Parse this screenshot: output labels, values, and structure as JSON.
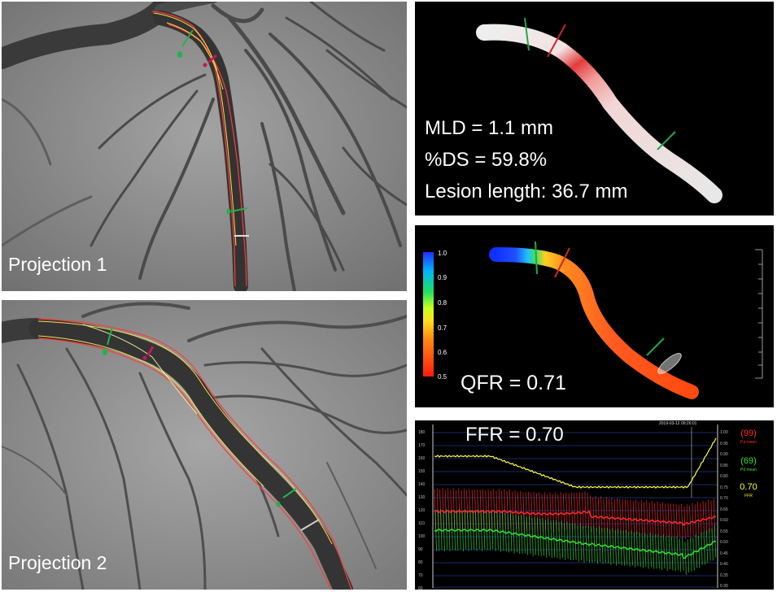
{
  "projection1": {
    "label": "Projection 1"
  },
  "projection2": {
    "label": "Projection 2"
  },
  "model3d": {
    "mld": "MLD = 1.1 mm",
    "ds": "%DS = 59.8%",
    "lesion_length": "Lesion length: 36.7 mm"
  },
  "qfr": {
    "label": "QFR = 0.71",
    "scale_ticks": [
      "1.0",
      "0.9",
      "0.8",
      "0.7",
      "0.6",
      "0.5"
    ]
  },
  "ffr": {
    "title": "FFR = 0.70",
    "timestamp": "2019-03-12 09:26:01",
    "pa_value": "(99)",
    "pa_label": "Pa mean",
    "pd_value": "(69)",
    "pd_label": "Pd mean",
    "ffr_value": "0.70",
    "ffr_label": "FFR",
    "left_axis": [
      "180",
      "170",
      "160",
      "150",
      "140",
      "130",
      "120",
      "110",
      "100",
      "90",
      "80",
      "70",
      "60"
    ],
    "right_axis": [
      "1.00",
      "0.95",
      "0.90",
      "0.85",
      "0.80",
      "0.75",
      "0.70",
      "0.65",
      "0.60",
      "0.55",
      "0.50",
      "0.45",
      "0.40",
      "0.35",
      "0.30"
    ],
    "colors": {
      "pa": "#ff2b2b",
      "pd": "#35e035",
      "ffr": "#ffff44"
    }
  }
}
